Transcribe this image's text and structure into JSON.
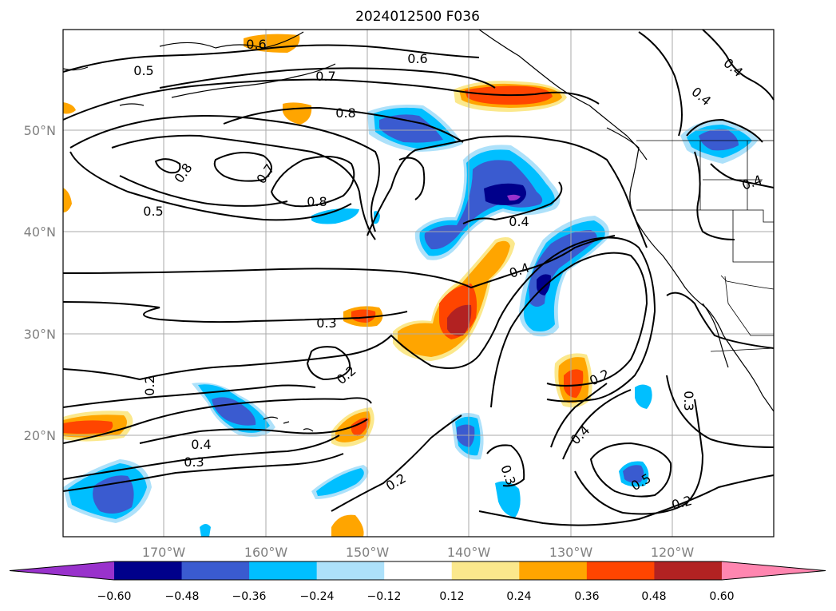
{
  "title": "2024012500 F036",
  "map": {
    "lat_labels": [
      "50°N",
      "40°N",
      "30°N",
      "20°N"
    ],
    "lon_labels": [
      "170°W",
      "160°W",
      "150°W",
      "140°W",
      "130°W",
      "120°W"
    ],
    "contour_labels": [
      "0.6",
      "0.6",
      "0.5",
      "0.7",
      "0.8",
      "0.8",
      "0.7",
      "0.8",
      "0.5",
      "0.4",
      "0.4",
      "0.3",
      "0.2",
      "0.2",
      "0.4",
      "0.3",
      "0.2",
      "0.3",
      "0.4",
      "0.2",
      "0.5",
      "0.2",
      "0.3",
      "0.4",
      "0.4",
      "0.4"
    ]
  },
  "colorbar": {
    "ticks": [
      "−0.60",
      "−0.48",
      "−0.36",
      "−0.24",
      "−0.12",
      "0.12",
      "0.24",
      "0.36",
      "0.48",
      "0.60"
    ],
    "colors": [
      "#9932CC",
      "#00008B",
      "#3A5BD0",
      "#00BFFF",
      "#ADE1FA",
      "#FFFFFF",
      "#FBE88C",
      "#FFA500",
      "#FF4500",
      "#B22222",
      "#FF86B0"
    ]
  }
}
